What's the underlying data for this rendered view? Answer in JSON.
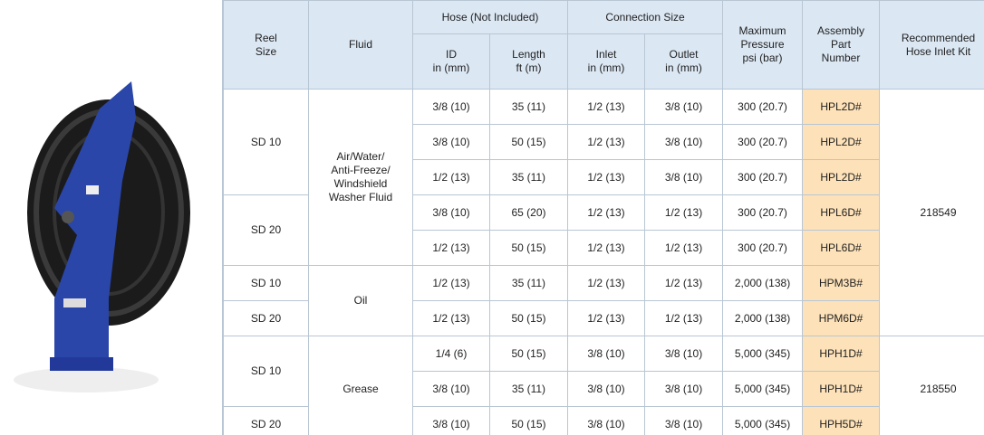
{
  "table": {
    "header": {
      "reel_size": "Reel\nSize",
      "fluid": "Fluid",
      "hose": "Hose (Not Included)",
      "connection": "Connection Size",
      "pressure": "Maximum\nPressure\npsi (bar)",
      "part": "Assembly\nPart\nNumber",
      "kit": "Recommended\nHose Inlet Kit",
      "id": "ID\nin (mm)",
      "length": "Length\nft (m)",
      "inlet": "Inlet\nin (mm)",
      "outlet": "Outlet\nin (mm)"
    },
    "rows": [
      [
        "SD 10",
        "Air/Water/\nAnti-Freeze/\nWindshield\nWasher Fluid",
        "3/8 (10)",
        "35 (11)",
        "1/2 (13)",
        "3/8 (10)",
        "300 (20.7)",
        "HPL2D#",
        "218549"
      ],
      [
        "3/8 (10)",
        "50 (15)",
        "1/2 (13)",
        "3/8 (10)",
        "300 (20.7)",
        "HPL2D#"
      ],
      [
        "1/2 (13)",
        "35 (11)",
        "1/2 (13)",
        "3/8 (10)",
        "300 (20.7)",
        "HPL2D#"
      ],
      [
        "SD 20",
        "3/8 (10)",
        "65 (20)",
        "1/2 (13)",
        "1/2 (13)",
        "300 (20.7)",
        "HPL6D#"
      ],
      [
        "1/2 (13)",
        "50 (15)",
        "1/2 (13)",
        "1/2 (13)",
        "300 (20.7)",
        "HPL6D#"
      ],
      [
        "SD 10",
        "Oil",
        "1/2 (13)",
        "35 (11)",
        "1/2 (13)",
        "1/2 (13)",
        "2,000 (138)",
        "HPM3B#"
      ],
      [
        "SD 20",
        "1/2 (13)",
        "50 (15)",
        "1/2 (13)",
        "1/2 (13)",
        "2,000 (138)",
        "HPM6D#"
      ],
      [
        "SD 10",
        "Grease",
        "1/4 (6)",
        "50 (15)",
        "3/8 (10)",
        "3/8 (10)",
        "5,000 (345)",
        "HPH1D#",
        "218550"
      ],
      [
        "3/8 (10)",
        "35 (11)",
        "3/8 (10)",
        "3/8 (10)",
        "5,000 (345)",
        "HPH1D#"
      ],
      [
        "SD 20",
        "3/8 (10)",
        "50 (15)",
        "3/8 (10)",
        "3/8 (10)",
        "5,000 (345)",
        "HPH5D#"
      ]
    ]
  }
}
